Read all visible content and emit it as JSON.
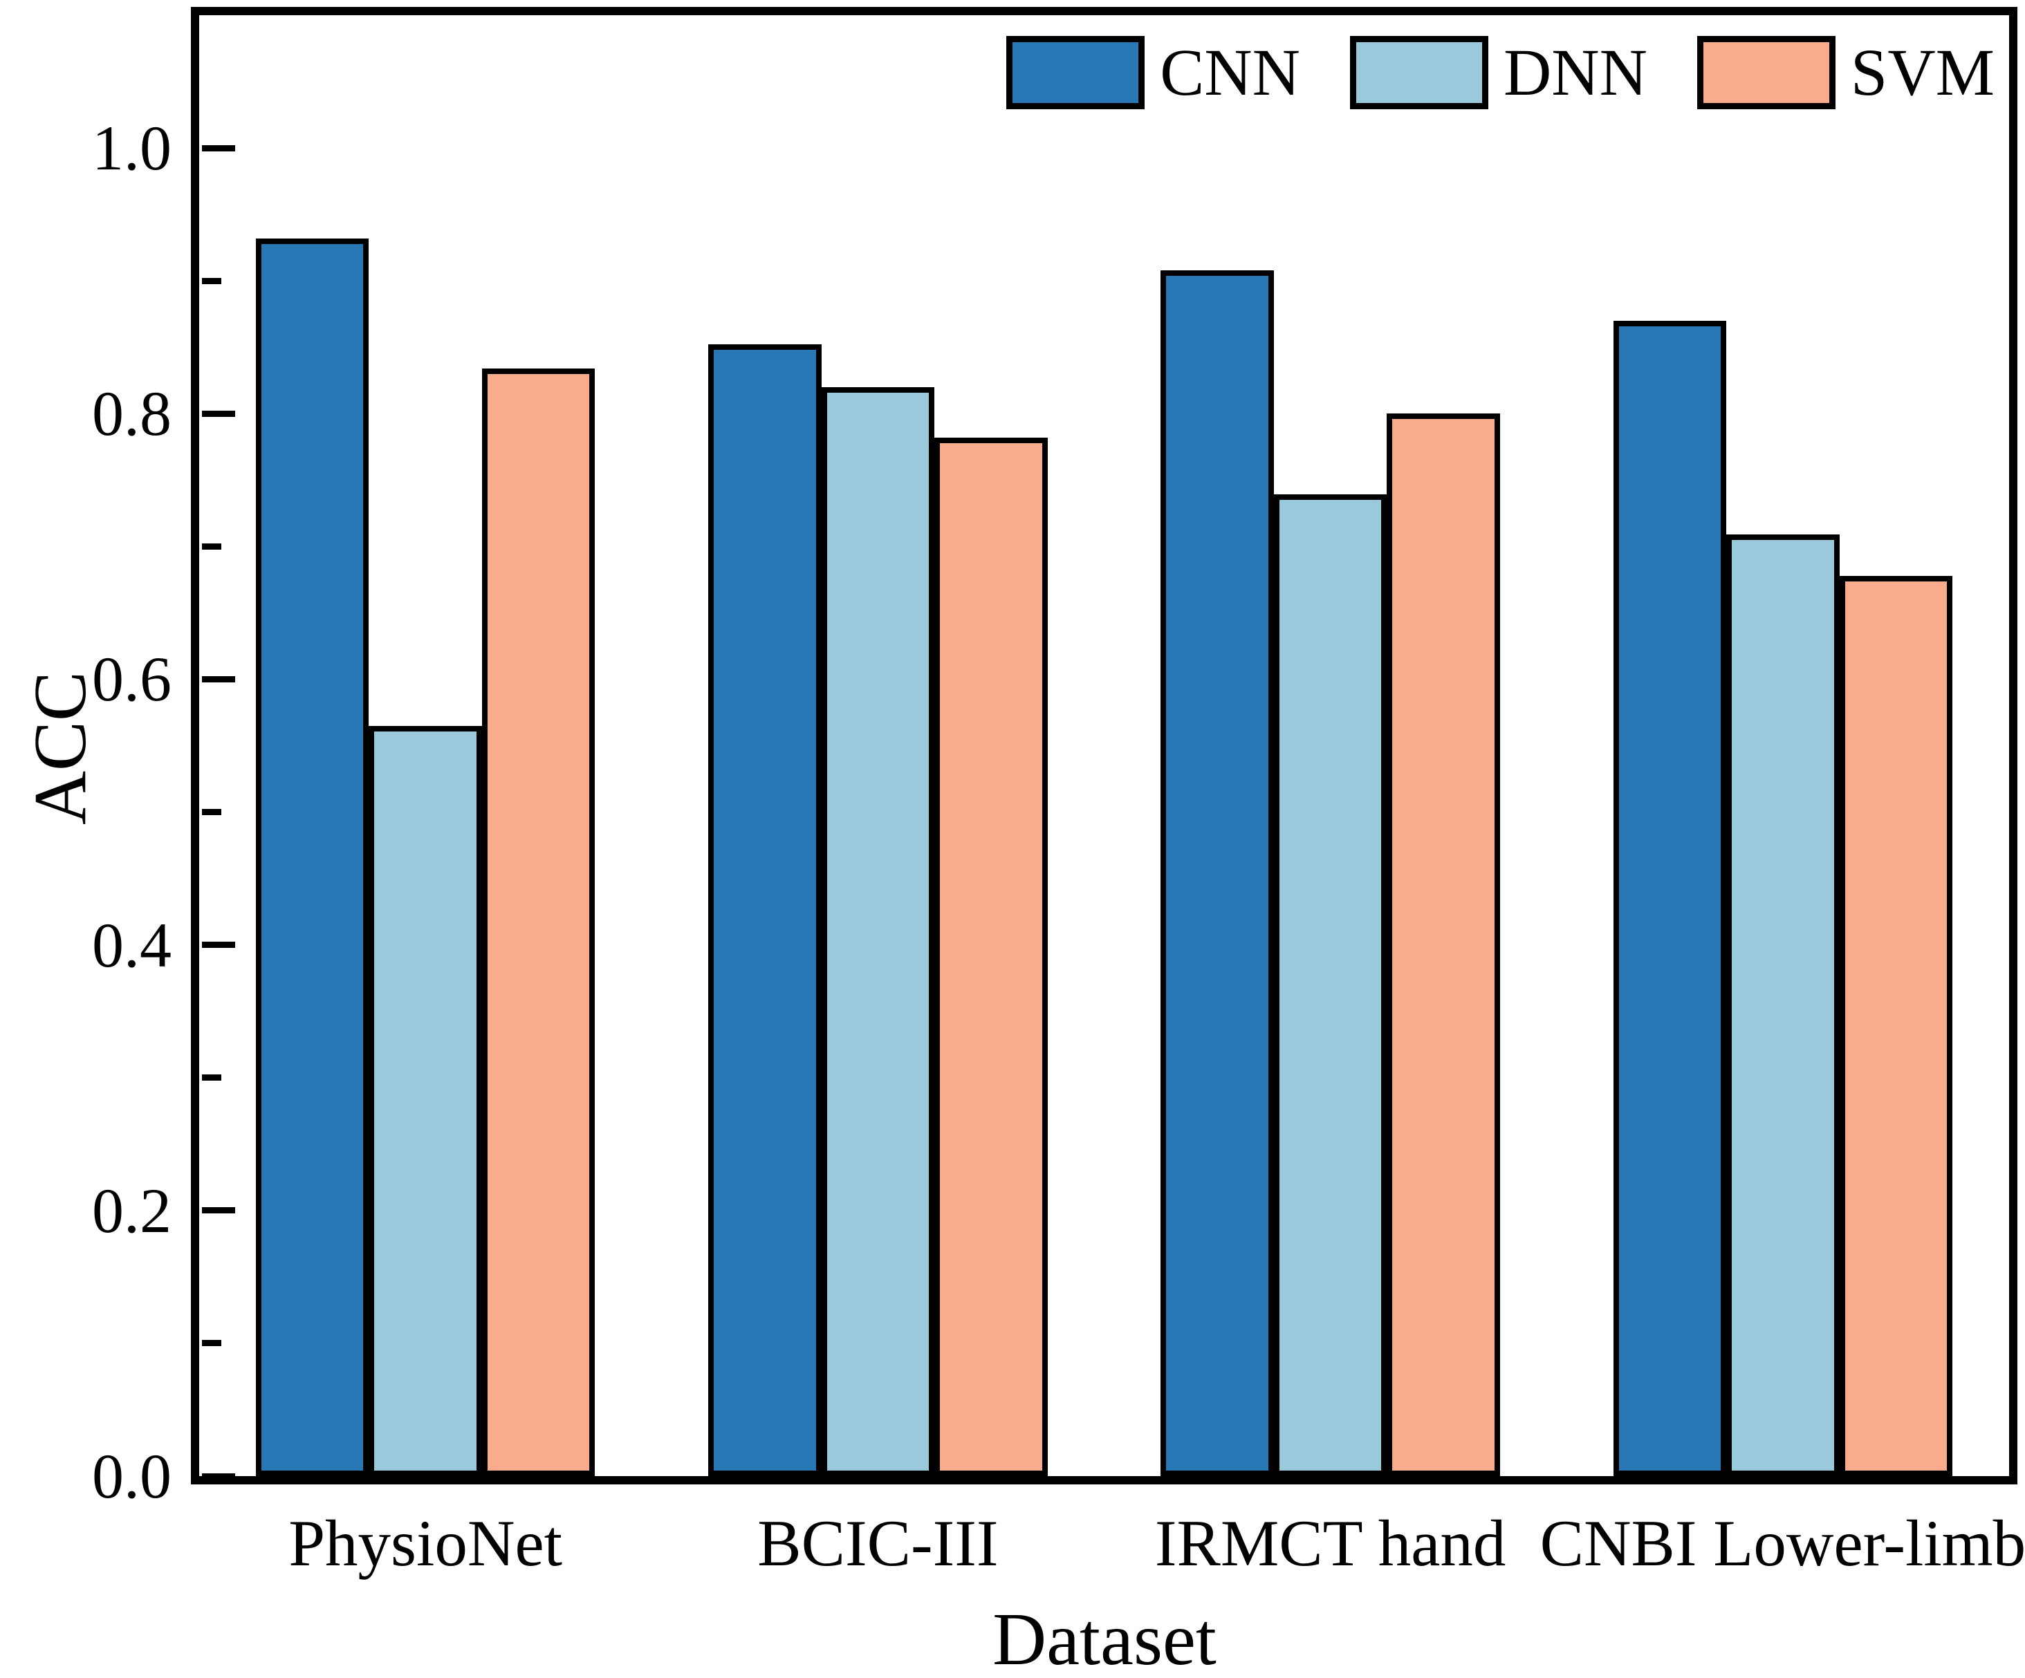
{
  "figure": {
    "background": "#ffffff"
  },
  "chart_data": {
    "type": "bar",
    "title": "",
    "xlabel": "Dataset",
    "ylabel": "ACC",
    "categories": [
      "PhysioNet",
      "BCIC-III",
      "IRMCT hand",
      "CNBI Lower-limb"
    ],
    "series": [
      {
        "name": "CNN",
        "color": "#2878B5",
        "values": [
          0.932,
          0.852,
          0.908,
          0.87
        ]
      },
      {
        "name": "DNN",
        "color": "#9AC9DB",
        "values": [
          0.565,
          0.82,
          0.739,
          0.709
        ]
      },
      {
        "name": "SVM",
        "color": "#F8AC8C",
        "values": [
          0.834,
          0.782,
          0.8,
          0.678
        ]
      }
    ],
    "ylim": [
      0,
      1.1
    ],
    "yticks": [
      0.0,
      0.2,
      0.4,
      0.6,
      0.8,
      1.0
    ],
    "ytick_labels": [
      "0.0",
      "0.2",
      "0.4",
      "0.6",
      "0.8",
      "1.0"
    ],
    "minor_yticks": [
      0.1,
      0.3,
      0.5,
      0.7,
      0.9
    ],
    "bar_edge_color": "#000000",
    "bar_group_width_fraction": 0.75,
    "legend_position": "upper right",
    "grid": false
  }
}
